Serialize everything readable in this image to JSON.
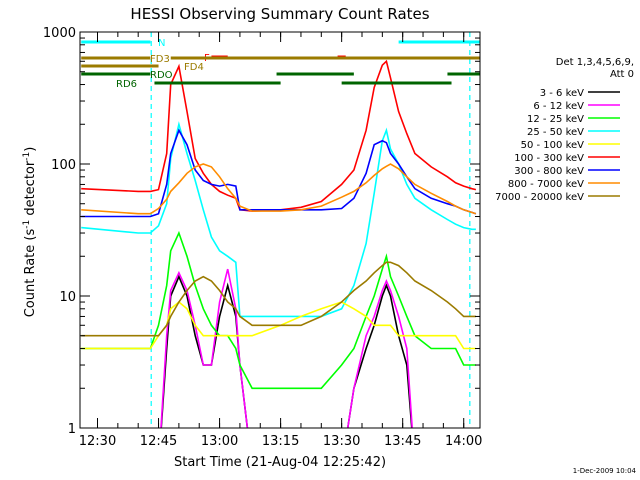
{
  "chart_data": {
    "type": "line",
    "title": "HESSI Observing Summary Count Rates",
    "xlabel": "Start Time (21-Aug-04 12:25:42)",
    "ylabel_main": "Count Rate (s",
    "ylabel_sup1": "-1",
    "ylabel_mid": " detector",
    "ylabel_sup2": "-1",
    "ylabel_end": ")",
    "x_unit": "minutes after 12:00 UT",
    "xlim": [
      25.7,
      124
    ],
    "ylim": [
      1,
      1000
    ],
    "y_scale": "log",
    "x_ticks": [
      {
        "value": 30,
        "label": "12:30"
      },
      {
        "value": 45,
        "label": "12:45"
      },
      {
        "value": 60,
        "label": "13:00"
      },
      {
        "value": 75,
        "label": "13:15"
      },
      {
        "value": 90,
        "label": "13:30"
      },
      {
        "value": 105,
        "label": "13:45"
      },
      {
        "value": 120,
        "label": "14:00"
      }
    ],
    "y_ticks": [
      {
        "value": 1,
        "label": "1"
      },
      {
        "value": 10,
        "label": "10"
      },
      {
        "value": 100,
        "label": "100"
      },
      {
        "value": 1000,
        "label": "1000"
      }
    ],
    "legend_header": [
      "Det 1,3,4,5,6,9,",
      "Att 0"
    ],
    "legend_placement": "right",
    "series": [
      {
        "name": "3 - 6 keV",
        "color": "#000000",
        "x": [
          26,
          40,
          43,
          45,
          47,
          48,
          50,
          52,
          54,
          56,
          58,
          60,
          62,
          64,
          65,
          68,
          75,
          80,
          85,
          90,
          93,
          96,
          98,
          100,
          101,
          102,
          104,
          106,
          108,
          112,
          116,
          118,
          120,
          122,
          123
        ],
        "y": [
          0,
          0,
          0,
          0,
          4,
          10,
          14,
          10,
          5,
          3,
          3,
          7,
          12,
          7,
          3,
          0,
          0,
          0,
          0,
          0,
          2,
          4,
          6,
          10,
          12,
          10,
          5,
          3,
          0,
          0,
          0,
          0,
          0,
          0,
          0
        ]
      },
      {
        "name": "6 - 12 keV",
        "color": "#ff00ff",
        "x": [
          26,
          40,
          43,
          45,
          47,
          48,
          50,
          52,
          54,
          56,
          58,
          60,
          62,
          64,
          65,
          68,
          75,
          80,
          85,
          90,
          93,
          96,
          98,
          100,
          101,
          102,
          104,
          106,
          108,
          112,
          116,
          118,
          120,
          122,
          123
        ],
        "y": [
          0,
          0,
          0,
          0,
          5,
          11,
          15,
          11,
          6,
          3,
          3,
          9,
          16,
          8,
          3,
          0,
          0,
          0,
          0,
          0,
          2,
          5,
          7,
          11,
          13,
          11,
          7,
          4,
          0,
          0,
          0,
          0,
          0,
          0,
          0
        ]
      },
      {
        "name": "12 - 25 keV",
        "color": "#00ff00",
        "x": [
          26,
          40,
          43,
          45,
          47,
          48,
          50,
          52,
          54,
          56,
          58,
          60,
          62,
          64,
          65,
          68,
          75,
          80,
          85,
          90,
          93,
          96,
          98,
          100,
          101,
          102,
          104,
          106,
          108,
          112,
          116,
          118,
          120,
          122,
          123
        ],
        "y": [
          4,
          4,
          4,
          6,
          12,
          22,
          30,
          20,
          12,
          8,
          6,
          5,
          5,
          4,
          3,
          2,
          2,
          2,
          2,
          3,
          4,
          7,
          10,
          16,
          20,
          14,
          10,
          7,
          5,
          4,
          4,
          4,
          3,
          3,
          3
        ]
      },
      {
        "name": "25 - 50 keV",
        "color": "#00ffff",
        "x": [
          26,
          40,
          43,
          45,
          47,
          48,
          50,
          52,
          54,
          56,
          58,
          60,
          62,
          64,
          65,
          68,
          75,
          80,
          85,
          90,
          93,
          96,
          98,
          100,
          101,
          102,
          104,
          106,
          108,
          112,
          116,
          118,
          120,
          122,
          123
        ],
        "y": [
          33,
          30,
          30,
          34,
          50,
          110,
          200,
          120,
          75,
          45,
          28,
          22,
          20,
          18,
          7,
          7,
          7,
          7,
          7,
          8,
          12,
          25,
          60,
          150,
          180,
          130,
          100,
          70,
          55,
          45,
          38,
          35,
          33,
          32,
          32
        ]
      },
      {
        "name": "50 - 100 keV",
        "color": "#ffff00",
        "x": [
          26,
          40,
          43,
          45,
          47,
          48,
          50,
          52,
          54,
          56,
          58,
          60,
          62,
          64,
          65,
          68,
          75,
          80,
          85,
          90,
          93,
          96,
          98,
          100,
          101,
          102,
          104,
          106,
          108,
          112,
          116,
          118,
          120,
          122,
          123
        ],
        "y": [
          4,
          4,
          4,
          5,
          6,
          8,
          9,
          8,
          6,
          5,
          5,
          5,
          5,
          5,
          5,
          5,
          6,
          7,
          8,
          9,
          8,
          7,
          6,
          6,
          6,
          6,
          5,
          5,
          5,
          5,
          5,
          5,
          4,
          4,
          4
        ]
      },
      {
        "name": "100 - 300 keV",
        "color": "#ff0000",
        "x": [
          26,
          40,
          43,
          45,
          47,
          48,
          50,
          52,
          54,
          56,
          58,
          60,
          62,
          64,
          65,
          68,
          75,
          80,
          85,
          90,
          93,
          96,
          98,
          100,
          101,
          102,
          104,
          106,
          108,
          112,
          116,
          118,
          120,
          122,
          123
        ],
        "y": [
          65,
          62,
          62,
          64,
          120,
          400,
          550,
          250,
          110,
          85,
          70,
          62,
          58,
          55,
          45,
          44,
          45,
          47,
          52,
          70,
          90,
          180,
          380,
          560,
          600,
          450,
          250,
          170,
          120,
          95,
          80,
          72,
          68,
          65,
          64
        ]
      },
      {
        "name": "300 - 800 keV",
        "color": "#0000ff",
        "x": [
          26,
          40,
          43,
          45,
          47,
          48,
          50,
          52,
          54,
          56,
          58,
          60,
          62,
          64,
          65,
          68,
          75,
          80,
          85,
          90,
          93,
          96,
          98,
          100,
          101,
          102,
          104,
          106,
          108,
          112,
          116,
          118,
          120,
          122,
          123
        ],
        "y": [
          40,
          40,
          40,
          42,
          70,
          120,
          180,
          140,
          90,
          75,
          70,
          68,
          70,
          68,
          45,
          45,
          45,
          45,
          45,
          46,
          55,
          85,
          140,
          150,
          145,
          120,
          100,
          80,
          65,
          55,
          50,
          48,
          45,
          43,
          42
        ]
      },
      {
        "name": "800 - 7000 keV",
        "color": "#ff8c00",
        "x": [
          26,
          40,
          43,
          45,
          47,
          48,
          50,
          52,
          54,
          56,
          58,
          60,
          62,
          64,
          65,
          68,
          75,
          80,
          85,
          90,
          93,
          96,
          98,
          100,
          101,
          102,
          104,
          106,
          108,
          112,
          116,
          118,
          120,
          122,
          123
        ],
        "y": [
          45,
          42,
          42,
          46,
          54,
          62,
          72,
          85,
          95,
          100,
          95,
          80,
          65,
          55,
          48,
          44,
          44,
          45,
          48,
          56,
          62,
          72,
          82,
          92,
          96,
          100,
          92,
          80,
          70,
          60,
          52,
          48,
          45,
          43,
          42
        ]
      },
      {
        "name": "7000 - 20000 keV",
        "color": "#9b7b00",
        "x": [
          26,
          40,
          43,
          45,
          47,
          48,
          50,
          52,
          54,
          56,
          58,
          60,
          62,
          64,
          65,
          68,
          75,
          80,
          85,
          90,
          93,
          96,
          98,
          100,
          101,
          102,
          104,
          106,
          108,
          112,
          116,
          118,
          120,
          122,
          123
        ],
        "y": [
          5,
          5,
          5,
          5,
          6,
          7,
          9,
          11,
          13,
          14,
          13,
          11,
          9,
          8,
          7,
          6,
          6,
          6,
          7,
          9,
          11,
          13,
          15,
          17,
          18,
          18,
          17,
          15,
          13,
          11,
          9,
          8,
          7,
          7,
          7
        ]
      }
    ],
    "flags": [
      {
        "label": "N",
        "color": "#00ffff",
        "segments": [
          [
            26,
            43
          ],
          [
            104,
            124
          ]
        ]
      },
      {
        "label": "F",
        "color": "#ff0000",
        "segments": [
          [
            58,
            62
          ],
          [
            89,
            91
          ]
        ]
      },
      {
        "label": "FD3",
        "color": "#9b7b00",
        "segments": [
          [
            26,
            43
          ],
          [
            48,
            124
          ]
        ]
      },
      {
        "label": "FD4",
        "color": "#9b7b00",
        "segments": [
          [
            26,
            45
          ]
        ]
      },
      {
        "label": "RDO",
        "color": "#006400",
        "segments": [
          [
            26,
            43
          ],
          [
            74,
            93
          ],
          [
            116,
            124
          ]
        ]
      },
      {
        "label": "RD6",
        "color": "#006400",
        "segments": [
          [
            44,
            75
          ],
          [
            90,
            117
          ]
        ]
      }
    ],
    "dashed_markers": [
      {
        "x": 43.2,
        "color": "#00ffff"
      },
      {
        "x": 121.5,
        "color": "#00ffff"
      }
    ],
    "footer_date": "1-Dec-2009 10:04"
  }
}
